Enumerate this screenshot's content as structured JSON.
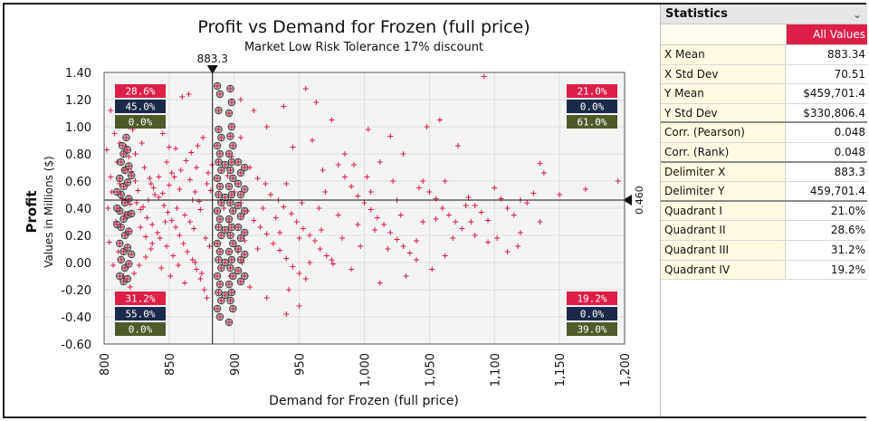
{
  "colors": {
    "accent": "#dd1f48",
    "navy": "#1b2a4a",
    "olive": "#4e5a28",
    "point": "#d81b46"
  },
  "chart_data": {
    "type": "scatter",
    "title": "Profit vs Demand for Frozen (full price)",
    "subtitle": "Market Low Risk Tolerance 17% discount",
    "xlabel": "Demand for Frozen (full price)",
    "ylabel": "Profit",
    "ylabel_units": "Values in Millions ($)",
    "xlim": [
      800,
      1200
    ],
    "ylim": [
      -0.6,
      1.4
    ],
    "x_ticks": [
      "800",
      "850",
      "900",
      "950",
      "1,000",
      "1,050",
      "1,100",
      "1,150",
      "1,200"
    ],
    "y_ticks": [
      "1.40",
      "1.20",
      "1.00",
      "0.80",
      "0.60",
      "0.40",
      "0.20",
      "0.00",
      "-0.20",
      "-0.40",
      "-0.60"
    ],
    "delimiter_x": 883.3,
    "delimiter_x_label": "883.3",
    "delimiter_y": 0.46,
    "delimiter_y_label": "0.460",
    "grid": true,
    "quadrant_labels": {
      "top_left": [
        "28.6%",
        "45.0%",
        "0.0%"
      ],
      "top_right": [
        "21.0%",
        "0.0%",
        "61.0%"
      ],
      "bottom_left": [
        "31.2%",
        "55.0%",
        "0.0%"
      ],
      "bottom_right": [
        "19.2%",
        "0.0%",
        "39.0%"
      ]
    },
    "points_cross": [
      [
        805,
        1.12
      ],
      [
        808,
        0.95
      ],
      [
        810,
        0.74
      ],
      [
        812,
        0.58
      ],
      [
        806,
        0.52
      ],
      [
        814,
        0.47
      ],
      [
        803,
        0.4
      ],
      [
        816,
        0.36
      ],
      [
        809,
        0.3
      ],
      [
        818,
        0.22
      ],
      [
        804,
        0.15
      ],
      [
        811,
        0.08
      ],
      [
        807,
        -0.02
      ],
      [
        815,
        -0.1
      ],
      [
        820,
        -0.18
      ],
      [
        813,
        -0.25
      ],
      [
        822,
        0.98
      ],
      [
        826,
        1.05
      ],
      [
        829,
        0.88
      ],
      [
        831,
        0.7
      ],
      [
        835,
        0.62
      ],
      [
        838,
        0.55
      ],
      [
        842,
        0.48
      ],
      [
        846,
        0.42
      ],
      [
        849,
        0.37
      ],
      [
        852,
        0.31
      ],
      [
        855,
        0.26
      ],
      [
        858,
        0.2
      ],
      [
        861,
        0.14
      ],
      [
        864,
        0.08
      ],
      [
        868,
        0.02
      ],
      [
        871,
        -0.05
      ],
      [
        874,
        -0.12
      ],
      [
        877,
        -0.2
      ],
      [
        880,
        0.66
      ],
      [
        883,
        0.72
      ],
      [
        825,
        0.44
      ],
      [
        828,
        0.39
      ],
      [
        833,
        0.33
      ],
      [
        837,
        0.28
      ],
      [
        841,
        0.22
      ],
      [
        845,
        0.51
      ],
      [
        850,
        0.57
      ],
      [
        854,
        0.63
      ],
      [
        859,
        0.68
      ],
      [
        863,
        0.75
      ],
      [
        867,
        0.81
      ],
      [
        872,
        0.86
      ],
      [
        876,
        0.92
      ],
      [
        860,
        1.22
      ],
      [
        865,
        1.24
      ],
      [
        840,
        1.05
      ],
      [
        845,
        0.95
      ],
      [
        850,
        0.85
      ],
      [
        870,
        0.52
      ],
      [
        873,
        0.45
      ],
      [
        856,
        0.4
      ],
      [
        862,
        0.35
      ],
      [
        866,
        0.3
      ],
      [
        869,
        0.25
      ],
      [
        878,
        0.18
      ],
      [
        881,
        0.12
      ],
      [
        836,
        0.1
      ],
      [
        832,
        0.04
      ],
      [
        827,
        -0.02
      ],
      [
        823,
        -0.08
      ],
      [
        857,
        -0.02
      ],
      [
        853,
        0.05
      ],
      [
        848,
        0.12
      ],
      [
        843,
        0.18
      ],
      [
        839,
        0.5
      ],
      [
        834,
        0.46
      ],
      [
        830,
        0.41
      ],
      [
        824,
        0.6
      ],
      [
        821,
        0.67
      ],
      [
        819,
        0.78
      ],
      [
        817,
        0.85
      ],
      [
        848,
        0.74
      ],
      [
        852,
        0.66
      ],
      [
        858,
        0.54
      ],
      [
        868,
        0.46
      ],
      [
        874,
        0.39
      ],
      [
        879,
        0.58
      ],
      [
        882,
        0.53
      ],
      [
        870,
        0.0
      ],
      [
        875,
        -0.08
      ],
      [
        879,
        -0.26
      ],
      [
        815,
        0.68
      ],
      [
        812,
        0.88
      ],
      [
        819,
        1.0
      ],
      [
        824,
        0.8
      ],
      [
        828,
        0.26
      ],
      [
        832,
        0.19
      ],
      [
        837,
        0.14
      ],
      [
        844,
        -0.04
      ],
      [
        851,
        -0.1
      ],
      [
        862,
        -0.15
      ],
      [
        866,
        0.61
      ],
      [
        871,
        0.7
      ],
      [
        855,
        0.84
      ],
      [
        847,
        0.3
      ],
      [
        842,
        0.63
      ],
      [
        836,
        0.58
      ],
      [
        826,
        0.53
      ],
      [
        820,
        0.43
      ],
      [
        805,
        0.63
      ],
      [
        802,
        0.83
      ],
      [
        895,
        0.64
      ],
      [
        900,
        0.52
      ],
      [
        905,
        0.44
      ],
      [
        910,
        0.38
      ],
      [
        915,
        0.31
      ],
      [
        920,
        0.26
      ],
      [
        925,
        0.21
      ],
      [
        930,
        0.14
      ],
      [
        935,
        0.09
      ],
      [
        940,
        0.03
      ],
      [
        945,
        -0.03
      ],
      [
        950,
        -0.08
      ],
      [
        955,
        -0.12
      ],
      [
        912,
        0.7
      ],
      [
        918,
        0.62
      ],
      [
        924,
        0.58
      ],
      [
        928,
        0.5
      ],
      [
        934,
        0.46
      ],
      [
        938,
        0.41
      ],
      [
        944,
        0.36
      ],
      [
        948,
        0.3
      ],
      [
        953,
        0.25
      ],
      [
        958,
        0.2
      ],
      [
        962,
        0.16
      ],
      [
        966,
        0.1
      ],
      [
        971,
        0.05
      ],
      [
        976,
        -0.01
      ],
      [
        980,
        0.72
      ],
      [
        985,
        0.63
      ],
      [
        990,
        0.56
      ],
      [
        995,
        0.49
      ],
      [
        1000,
        0.44
      ],
      [
        1005,
        0.39
      ],
      [
        1010,
        0.33
      ],
      [
        1015,
        0.28
      ],
      [
        1020,
        0.22
      ],
      [
        1025,
        0.17
      ],
      [
        1030,
        0.12
      ],
      [
        1035,
        0.07
      ],
      [
        1040,
        0.02
      ],
      [
        1045,
        0.6
      ],
      [
        1050,
        0.52
      ],
      [
        1055,
        0.47
      ],
      [
        1060,
        0.4
      ],
      [
        1065,
        0.35
      ],
      [
        1070,
        0.3
      ],
      [
        1075,
        0.25
      ],
      [
        1080,
        0.48
      ],
      [
        1085,
        0.42
      ],
      [
        1090,
        0.37
      ],
      [
        1095,
        0.31
      ],
      [
        1100,
        0.55
      ],
      [
        1105,
        0.47
      ],
      [
        1110,
        0.4
      ],
      [
        1115,
        0.35
      ],
      [
        1120,
        0.22
      ],
      [
        1125,
        0.44
      ],
      [
        1130,
        0.51
      ],
      [
        1135,
        0.73
      ],
      [
        1138,
        0.66
      ],
      [
        1150,
        0.5
      ],
      [
        1170,
        0.54
      ],
      [
        1195,
        0.6
      ],
      [
        1092,
        1.37
      ],
      [
        955,
        1.28
      ],
      [
        963,
        1.18
      ],
      [
        938,
        1.15
      ],
      [
        975,
        1.05
      ],
      [
        1003,
        0.98
      ],
      [
        1020,
        0.93
      ],
      [
        1048,
        1.0
      ],
      [
        1058,
        1.05
      ],
      [
        1072,
        0.86
      ],
      [
        1030,
        0.8
      ],
      [
        960,
        0.9
      ],
      [
        925,
        1.0
      ],
      [
        905,
        1.2
      ],
      [
        915,
        1.12
      ],
      [
        945,
        0.85
      ],
      [
        985,
        0.8
      ],
      [
        1012,
        0.74
      ],
      [
        968,
        0.68
      ],
      [
        992,
        0.72
      ],
      [
        940,
        0.58
      ],
      [
        970,
        0.52
      ],
      [
        1002,
        0.63
      ],
      [
        1022,
        0.6
      ],
      [
        1042,
        0.55
      ],
      [
        1062,
        0.6
      ],
      [
        1082,
        0.3
      ],
      [
        1102,
        0.18
      ],
      [
        1118,
        0.12
      ],
      [
        1062,
        0.05
      ],
      [
        1052,
        -0.05
      ],
      [
        1032,
        -0.1
      ],
      [
        1012,
        -0.15
      ],
      [
        990,
        -0.05
      ],
      [
        975,
        0.02
      ],
      [
        958,
        0.0
      ],
      [
        942,
        -0.2
      ],
      [
        925,
        -0.26
      ],
      [
        912,
        -0.18
      ],
      [
        940,
        -0.38
      ],
      [
        950,
        -0.32
      ],
      [
        903,
        0.08
      ],
      [
        908,
        0.16
      ],
      [
        922,
        0.4
      ],
      [
        932,
        0.33
      ],
      [
        952,
        0.44
      ],
      [
        965,
        0.4
      ],
      [
        980,
        0.35
      ],
      [
        995,
        0.28
      ],
      [
        1008,
        0.24
      ],
      [
        1028,
        0.35
      ],
      [
        1045,
        0.3
      ],
      [
        1078,
        0.42
      ],
      [
        1095,
        0.15
      ],
      [
        1110,
        0.08
      ],
      [
        1068,
        0.18
      ],
      [
        1040,
        0.16
      ],
      [
        1018,
        0.1
      ],
      [
        997,
        0.12
      ],
      [
        983,
        0.18
      ],
      [
        967,
        0.24
      ],
      [
        950,
        0.18
      ],
      [
        935,
        0.22
      ],
      [
        918,
        0.1
      ],
      [
        906,
        0.0
      ],
      [
        897,
        -0.1
      ],
      [
        1005,
        0.52
      ],
      [
        1025,
        0.46
      ],
      [
        1055,
        0.32
      ],
      [
        1085,
        0.2
      ],
      [
        1135,
        0.3
      ],
      [
        1120,
        0.46
      ],
      [
        905,
        0.92
      ],
      [
        898,
        0.78
      ],
      [
        892,
        0.4
      ],
      [
        896,
        0.3
      ]
    ],
    "points_circle": [
      [
        814,
        0.86
      ],
      [
        815,
        0.8
      ],
      [
        813,
        0.74
      ],
      [
        816,
        0.68
      ],
      [
        812,
        0.62
      ],
      [
        815,
        0.56
      ],
      [
        813,
        0.5
      ],
      [
        816,
        0.44
      ],
      [
        812,
        0.38
      ],
      [
        815,
        0.32
      ],
      [
        813,
        0.26
      ],
      [
        816,
        0.2
      ],
      [
        812,
        0.14
      ],
      [
        815,
        0.08
      ],
      [
        813,
        0.02
      ],
      [
        816,
        -0.04
      ],
      [
        812,
        -0.1
      ],
      [
        815,
        -0.14
      ],
      [
        818,
        0.83
      ],
      [
        819,
        0.71
      ],
      [
        818,
        0.59
      ],
      [
        819,
        0.47
      ],
      [
        818,
        0.35
      ],
      [
        819,
        0.23
      ],
      [
        818,
        0.11
      ],
      [
        819,
        -0.01
      ],
      [
        818,
        -0.12
      ],
      [
        810,
        0.52
      ],
      [
        810,
        0.4
      ],
      [
        810,
        0.28
      ],
      [
        821,
        0.64
      ],
      [
        821,
        0.36
      ],
      [
        821,
        0.06
      ],
      [
        817,
        0.92
      ],
      [
        887,
        1.3
      ],
      [
        889,
        1.24
      ],
      [
        888,
        1.12
      ],
      [
        888,
        0.98
      ],
      [
        890,
        0.92
      ],
      [
        887,
        0.86
      ],
      [
        889,
        0.8
      ],
      [
        888,
        0.74
      ],
      [
        890,
        0.68
      ],
      [
        887,
        0.62
      ],
      [
        889,
        0.56
      ],
      [
        888,
        0.5
      ],
      [
        890,
        0.44
      ],
      [
        887,
        0.38
      ],
      [
        889,
        0.32
      ],
      [
        888,
        0.26
      ],
      [
        890,
        0.2
      ],
      [
        887,
        0.14
      ],
      [
        889,
        0.08
      ],
      [
        888,
        0.02
      ],
      [
        890,
        -0.04
      ],
      [
        887,
        -0.1
      ],
      [
        889,
        -0.16
      ],
      [
        888,
        -0.22
      ],
      [
        890,
        -0.28
      ],
      [
        887,
        -0.34
      ],
      [
        889,
        -0.4
      ],
      [
        897,
        1.28
      ],
      [
        898,
        1.18
      ],
      [
        896,
        1.1
      ],
      [
        898,
        1.0
      ],
      [
        897,
        0.93
      ],
      [
        899,
        0.86
      ],
      [
        896,
        0.8
      ],
      [
        898,
        0.74
      ],
      [
        897,
        0.68
      ],
      [
        899,
        0.62
      ],
      [
        896,
        0.56
      ],
      [
        898,
        0.5
      ],
      [
        897,
        0.44
      ],
      [
        899,
        0.38
      ],
      [
        896,
        0.32
      ],
      [
        898,
        0.26
      ],
      [
        897,
        0.2
      ],
      [
        899,
        0.14
      ],
      [
        896,
        0.08
      ],
      [
        898,
        0.02
      ],
      [
        897,
        -0.04
      ],
      [
        899,
        -0.1
      ],
      [
        896,
        -0.16
      ],
      [
        898,
        -0.22
      ],
      [
        897,
        -0.28
      ],
      [
        899,
        -0.34
      ],
      [
        896,
        -0.44
      ],
      [
        903,
        0.74
      ],
      [
        905,
        0.66
      ],
      [
        903,
        0.58
      ],
      [
        905,
        0.5
      ],
      [
        903,
        0.42
      ],
      [
        905,
        0.34
      ],
      [
        903,
        0.26
      ],
      [
        905,
        0.18
      ],
      [
        903,
        0.1
      ],
      [
        905,
        0.02
      ],
      [
        903,
        -0.06
      ],
      [
        905,
        -0.14
      ],
      [
        908,
        0.7
      ],
      [
        908,
        0.54
      ],
      [
        908,
        0.38
      ],
      [
        908,
        0.22
      ],
      [
        908,
        0.06
      ],
      [
        908,
        -0.1
      ],
      [
        893,
        0.72
      ],
      [
        893,
        0.48
      ],
      [
        893,
        0.24
      ],
      [
        893,
        0.0
      ],
      [
        893,
        -0.24
      ]
    ]
  },
  "statistics": {
    "title": "Statistics",
    "column_header": "All Values",
    "rows": [
      {
        "label": "X Mean",
        "value": "883.34"
      },
      {
        "label": "X Std Dev",
        "value": "70.51"
      },
      {
        "label": "Y Mean",
        "value": "$459,701.4"
      },
      {
        "label": "Y Std Dev",
        "value": "$330,806.4"
      },
      {
        "label": "Corr. (Pearson)",
        "value": "0.048"
      },
      {
        "label": "Corr. (Rank)",
        "value": "0.048"
      },
      {
        "label": "Delimiter X",
        "value": "883.3"
      },
      {
        "label": "Delimiter Y",
        "value": "459,701.4"
      },
      {
        "label": "Quadrant I",
        "value": "21.0%"
      },
      {
        "label": "Quadrant II",
        "value": "28.6%"
      },
      {
        "label": "Quadrant III",
        "value": "31.2%"
      },
      {
        "label": "Quadrant IV",
        "value": "19.2%"
      }
    ]
  }
}
